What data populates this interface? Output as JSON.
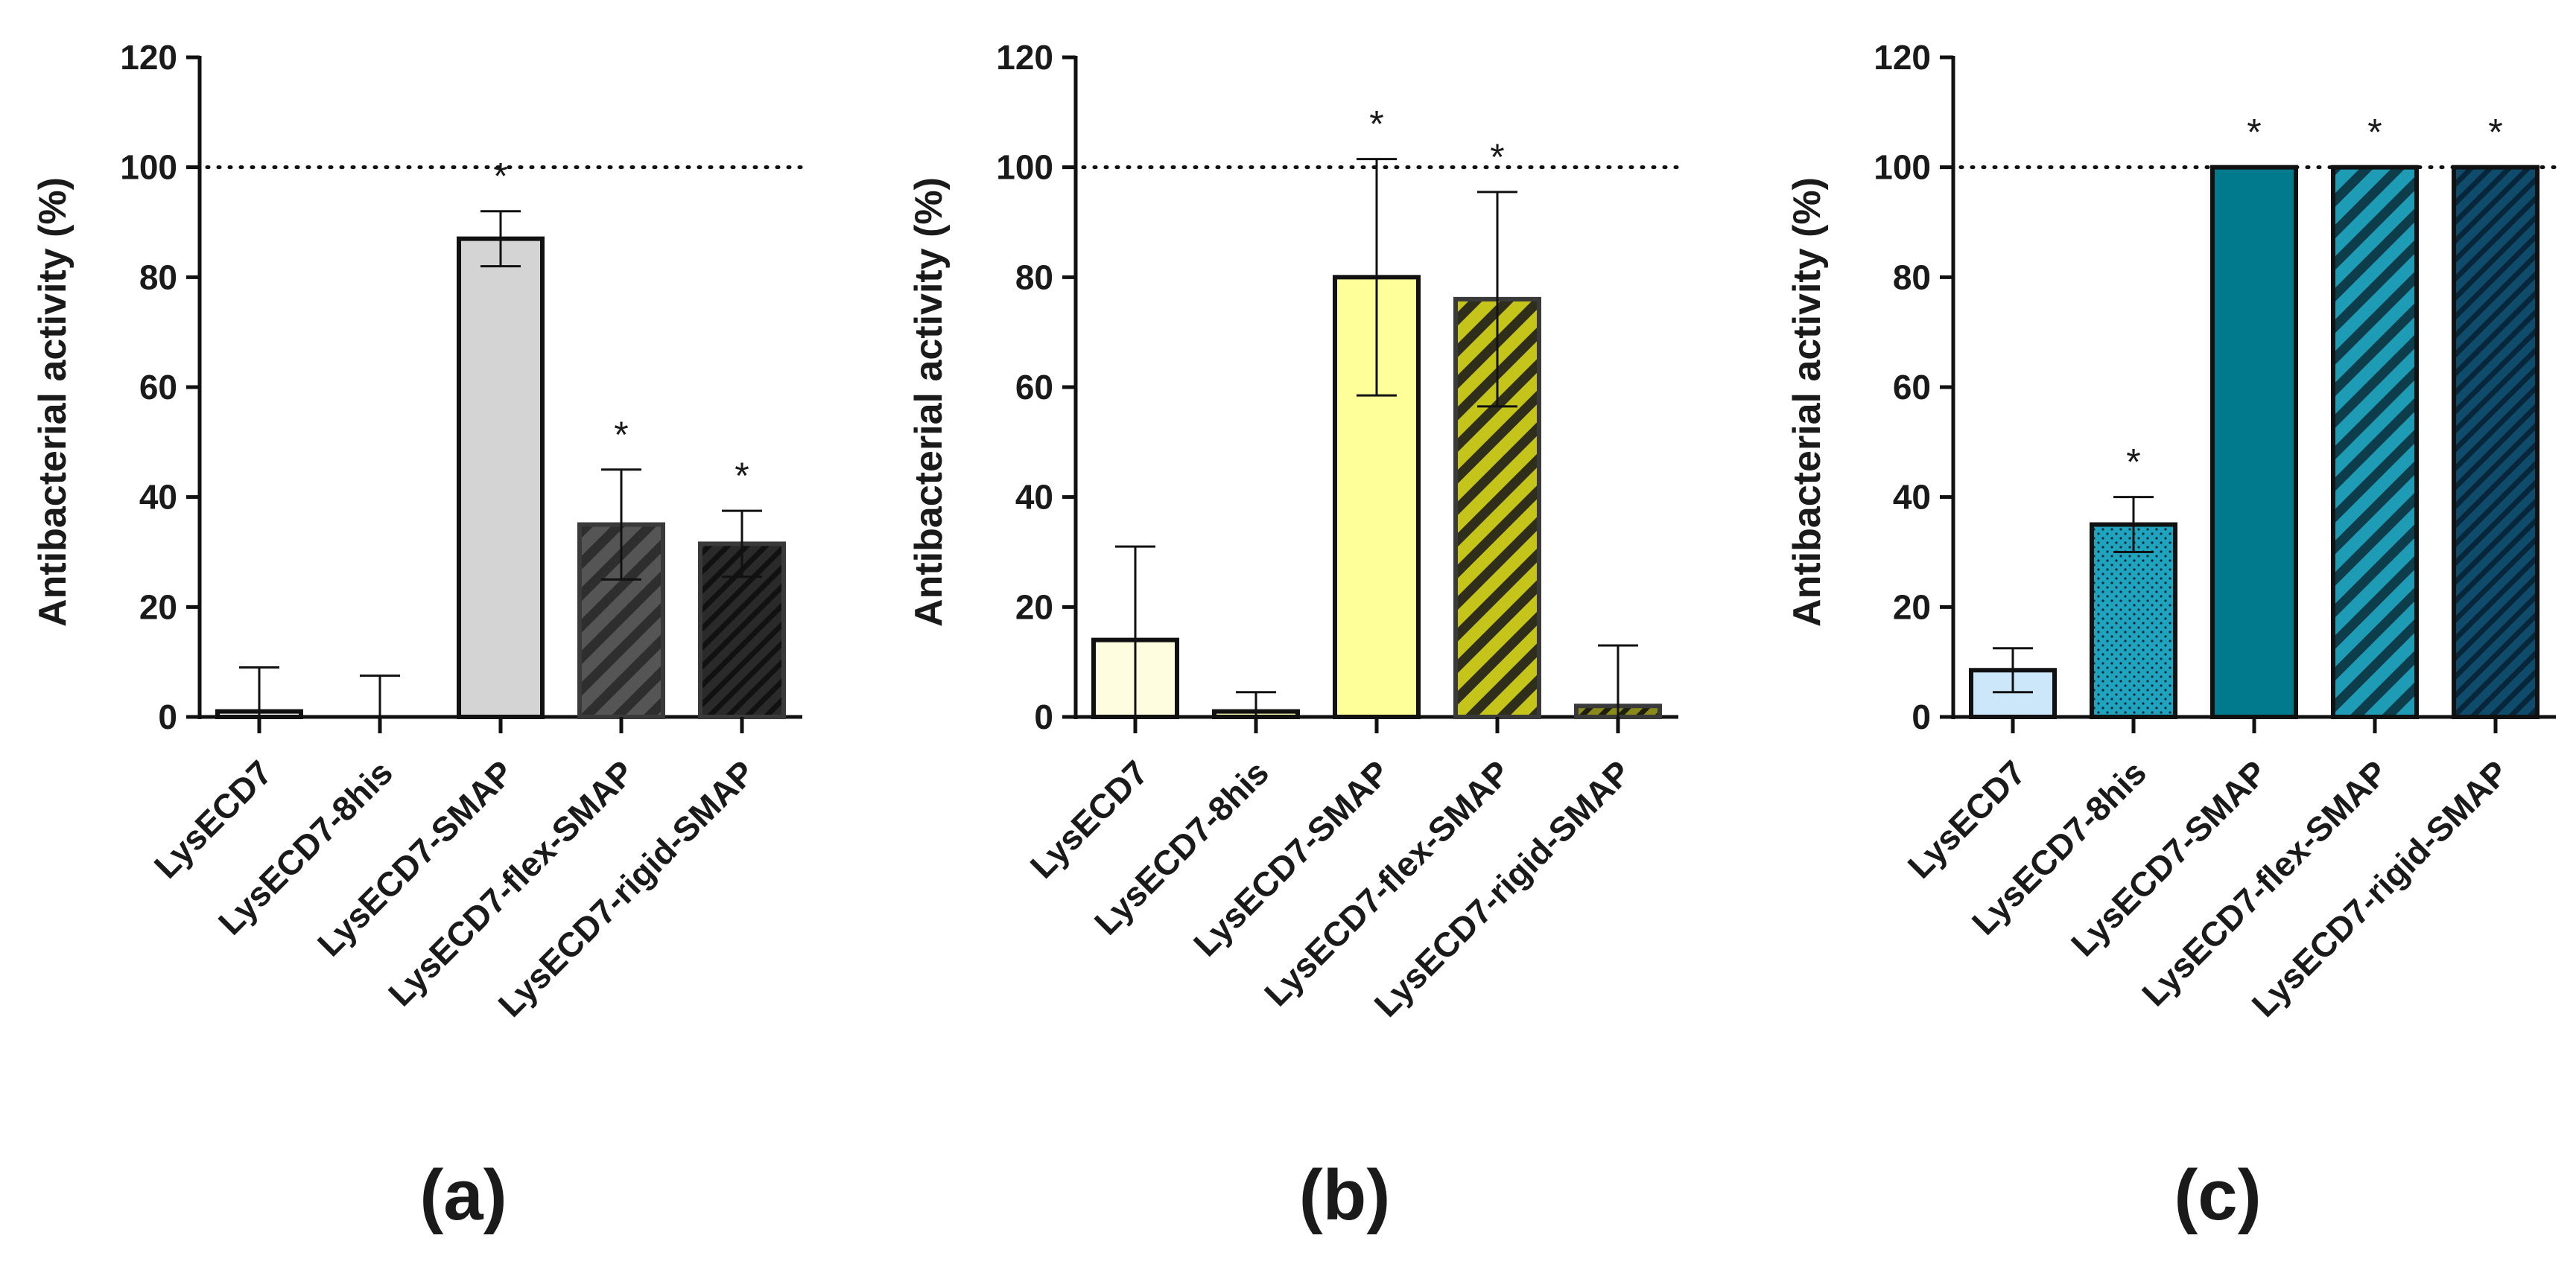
{
  "figure": {
    "panel_labels": [
      "(a)",
      "(b)",
      "(c)"
    ]
  },
  "chart_data": [
    {
      "type": "bar",
      "panel": "(a)",
      "title": "",
      "xlabel": "",
      "ylabel": "Antibacterial activity (%)",
      "ylim": [
        0,
        120
      ],
      "yticks": [
        0,
        20,
        40,
        60,
        80,
        100,
        120
      ],
      "reference_line": 100,
      "categories": [
        "LysECD7",
        "LysECD7-8his",
        "LysECD7-SMAP",
        "LysECD7-flex-SMAP",
        "LysECD7-rigid-SMAP"
      ],
      "values": [
        1,
        0,
        87,
        35,
        31.5
      ],
      "errors": [
        8,
        7.5,
        5,
        10,
        6
      ],
      "significance": [
        "",
        "",
        "*",
        "*",
        "*"
      ],
      "fills": [
        "#ffffff",
        "#ffffff",
        "#d4d4d4",
        "#555555",
        "#2a2a2a"
      ],
      "hatch_colors": [
        "",
        "",
        "",
        "#2e2e2e",
        "#111111"
      ],
      "hatch": [
        "none",
        "none",
        "none",
        "diagonal-wide",
        "diagonal-dense"
      ]
    },
    {
      "type": "bar",
      "panel": "(b)",
      "title": "",
      "xlabel": "",
      "ylabel": "Antibacterial activity (%)",
      "ylim": [
        0,
        120
      ],
      "yticks": [
        0,
        20,
        40,
        60,
        80,
        100,
        120
      ],
      "reference_line": 100,
      "categories": [
        "LysECD7",
        "LysECD7-8his",
        "LysECD7-SMAP",
        "LysECD7-flex-SMAP",
        "LysECD7-rigid-SMAP"
      ],
      "values": [
        14,
        1,
        80,
        76,
        2
      ],
      "errors": [
        17,
        3.5,
        21.5,
        19.5,
        11
      ],
      "significance": [
        "",
        "",
        "*",
        "*",
        ""
      ],
      "fills": [
        "#fffde0",
        "#ffffb3",
        "#ffff99",
        "#c4c41a",
        "#8a8a1c"
      ],
      "hatch_colors": [
        "",
        "",
        "",
        "#2e2e1a",
        "#1f1f10"
      ],
      "hatch": [
        "none",
        "none",
        "none",
        "diagonal-wide",
        "diagonal-dense"
      ]
    },
    {
      "type": "bar",
      "panel": "(c)",
      "title": "",
      "xlabel": "",
      "ylabel": "Antibacterial activity (%)",
      "ylim": [
        0,
        120
      ],
      "yticks": [
        0,
        20,
        40,
        60,
        80,
        100,
        120
      ],
      "reference_line": 100,
      "categories": [
        "LysECD7",
        "LysECD7-8his",
        "LysECD7-SMAP",
        "LysECD7-flex-SMAP",
        "LysECD7-rigid-SMAP"
      ],
      "values": [
        8.5,
        35,
        100,
        100,
        100
      ],
      "errors": [
        4,
        5,
        0,
        0,
        0
      ],
      "significance": [
        "",
        "*",
        "*",
        "*",
        "*"
      ],
      "fills": [
        "#cce6fa",
        "#1fa3bf",
        "#007a8c",
        "#1e9cb5",
        "#0f4c6b"
      ],
      "hatch_colors": [
        "",
        "#0a2b33",
        "",
        "#0d3d4a",
        "#07263a"
      ],
      "hatch": [
        "none",
        "dots",
        "none",
        "diagonal-wide",
        "diagonal-dense"
      ]
    }
  ]
}
